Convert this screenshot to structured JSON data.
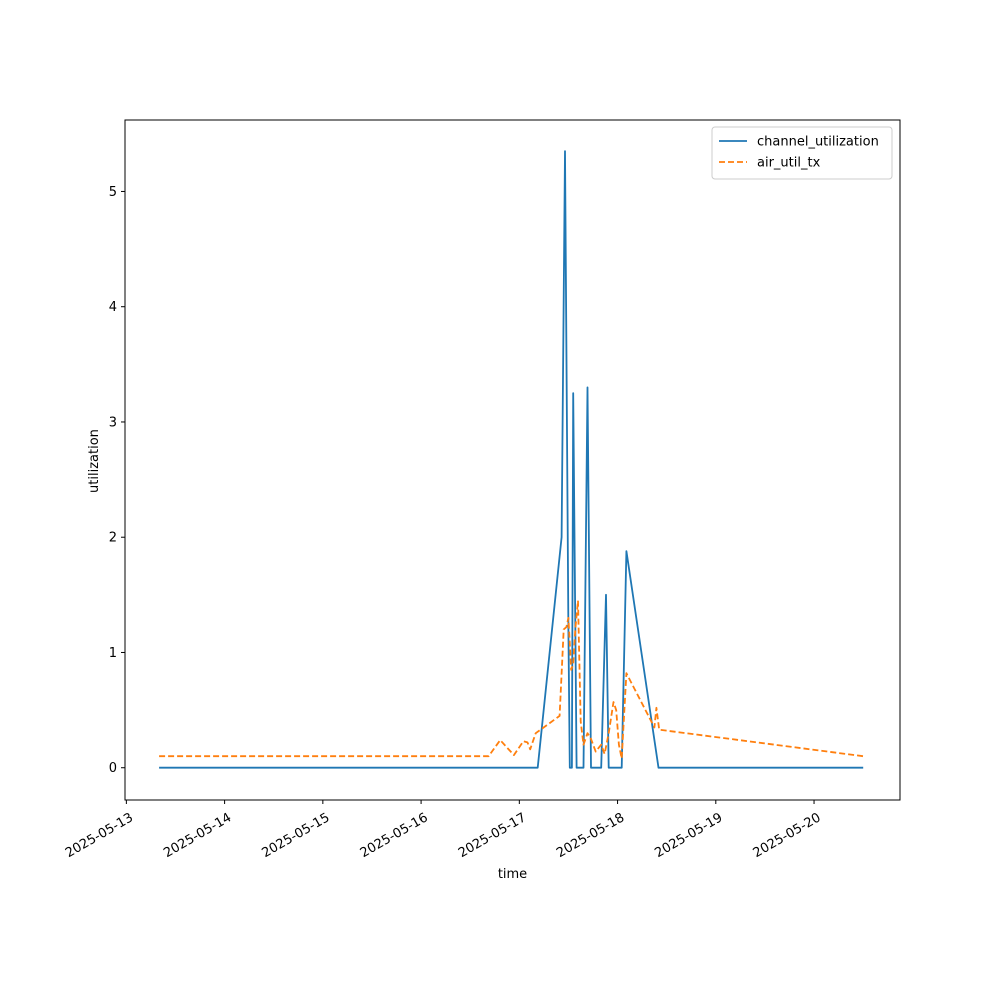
{
  "chart_data": {
    "type": "line",
    "xlabel": "time",
    "ylabel": "utilization",
    "x_axis_type": "date",
    "xlim": [
      "2025-05-12T23:40",
      "2025-05-20T21:00"
    ],
    "ylim": [
      -0.28,
      5.62
    ],
    "x_ticks": [
      "2025-05-13",
      "2025-05-14",
      "2025-05-15",
      "2025-05-16",
      "2025-05-17",
      "2025-05-18",
      "2025-05-19",
      "2025-05-20"
    ],
    "y_ticks": [
      0,
      1,
      2,
      3,
      4,
      5
    ],
    "grid": false,
    "legend_position": "top-right",
    "series": [
      {
        "name": "channel_utilization",
        "color": "#1f77b4",
        "dash": "solid",
        "points": [
          [
            "2025-05-13T08:00",
            0
          ],
          [
            "2025-05-17T04:30",
            0
          ],
          [
            "2025-05-17T10:20",
            2.0
          ],
          [
            "2025-05-17T11:10",
            5.35
          ],
          [
            "2025-05-17T12:00",
            1.2
          ],
          [
            "2025-05-17T12:20",
            0
          ],
          [
            "2025-05-17T12:50",
            0
          ],
          [
            "2025-05-17T13:10",
            3.25
          ],
          [
            "2025-05-17T14:00",
            0
          ],
          [
            "2025-05-17T15:40",
            0
          ],
          [
            "2025-05-17T16:40",
            3.3
          ],
          [
            "2025-05-17T17:30",
            0
          ],
          [
            "2025-05-17T20:00",
            0
          ],
          [
            "2025-05-17T21:10",
            1.5
          ],
          [
            "2025-05-17T21:50",
            0
          ],
          [
            "2025-05-18T01:00",
            0
          ],
          [
            "2025-05-18T02:10",
            1.88
          ],
          [
            "2025-05-18T10:00",
            0
          ],
          [
            "2025-05-20T12:00",
            0
          ]
        ]
      },
      {
        "name": "air_util_tx",
        "color": "#ff7f0e",
        "dash": "dashed",
        "points": [
          [
            "2025-05-13T08:00",
            0.1
          ],
          [
            "2025-05-16T16:30",
            0.1
          ],
          [
            "2025-05-16T19:20",
            0.24
          ],
          [
            "2025-05-16T22:40",
            0.11
          ],
          [
            "2025-05-17T01:00",
            0.23
          ],
          [
            "2025-05-17T02:00",
            0.22
          ],
          [
            "2025-05-17T02:40",
            0.16
          ],
          [
            "2025-05-17T04:00",
            0.3
          ],
          [
            "2025-05-17T09:50",
            0.45
          ],
          [
            "2025-05-17T10:50",
            1.2
          ],
          [
            "2025-05-17T11:30",
            1.22
          ],
          [
            "2025-05-17T12:00",
            1.3
          ],
          [
            "2025-05-17T12:40",
            0.85
          ],
          [
            "2025-05-17T13:10",
            0.9
          ],
          [
            "2025-05-17T13:40",
            1.2
          ],
          [
            "2025-05-17T14:20",
            1.45
          ],
          [
            "2025-05-17T15:00",
            0.4
          ],
          [
            "2025-05-17T15:40",
            0.2
          ],
          [
            "2025-05-17T16:40",
            0.3
          ],
          [
            "2025-05-17T17:30",
            0.25
          ],
          [
            "2025-05-17T18:40",
            0.14
          ],
          [
            "2025-05-17T20:00",
            0.2
          ],
          [
            "2025-05-17T20:50",
            0.12
          ],
          [
            "2025-05-17T21:50",
            0.3
          ],
          [
            "2025-05-17T23:00",
            0.57
          ],
          [
            "2025-05-17T23:40",
            0.5
          ],
          [
            "2025-05-18T00:20",
            0.2
          ],
          [
            "2025-05-18T01:00",
            0.08
          ],
          [
            "2025-05-18T02:10",
            0.82
          ],
          [
            "2025-05-18T09:00",
            0.35
          ],
          [
            "2025-05-18T09:30",
            0.52
          ],
          [
            "2025-05-18T10:10",
            0.33
          ],
          [
            "2025-05-20T12:00",
            0.1
          ]
        ]
      }
    ]
  }
}
